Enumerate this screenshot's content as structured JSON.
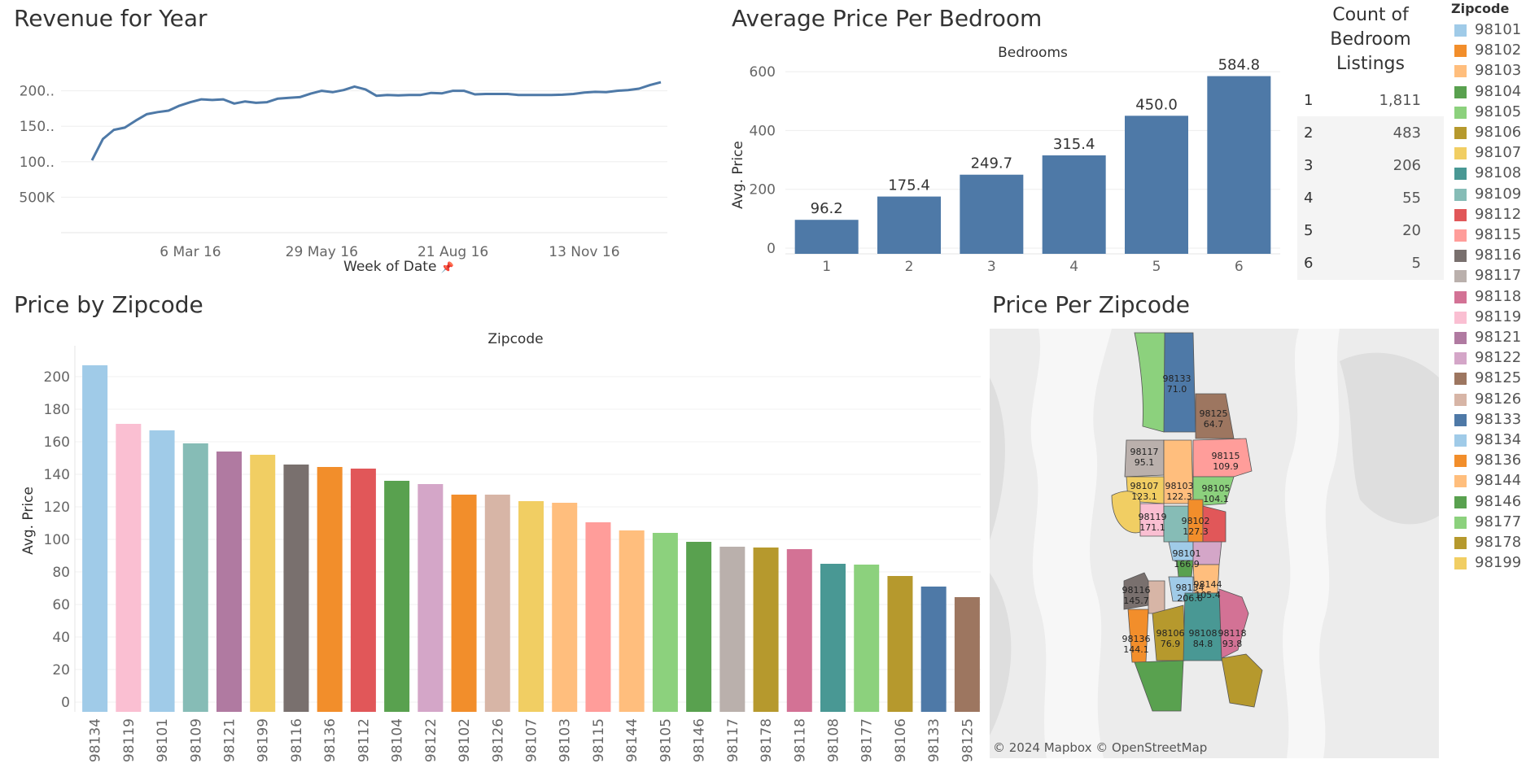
{
  "titles": {
    "revenue": "Revenue for Year",
    "avg_bedroom": "Average Price Per Bedroom",
    "count_bedroom": [
      "Count of",
      "Bedroom",
      "Listings"
    ],
    "price_zip": "Price by Zipcode",
    "price_per_zip": "Price Per Zipcode",
    "legend": "Zipcode"
  },
  "revenue_chart": {
    "type": "line",
    "xlabel": "Week of Date",
    "x_ticks": [
      "6 Mar 16",
      "29 May 16",
      "21 Aug 16",
      "13 Nov 16"
    ],
    "y_ticks": [
      "500K",
      "100..",
      "150..",
      "200.."
    ],
    "color": "#4e79a7",
    "x": [
      "2016-01-04",
      "2016-01-11",
      "2016-01-18",
      "2016-01-25",
      "2016-02-01",
      "2016-02-08",
      "2016-02-15",
      "2016-02-22",
      "2016-02-29",
      "2016-03-07",
      "2016-03-14",
      "2016-03-21",
      "2016-03-28",
      "2016-04-04",
      "2016-04-11",
      "2016-04-18",
      "2016-04-25",
      "2016-05-02",
      "2016-05-09",
      "2016-05-16",
      "2016-05-23",
      "2016-05-30",
      "2016-06-06",
      "2016-06-13",
      "2016-06-20",
      "2016-06-27",
      "2016-07-04",
      "2016-07-11",
      "2016-07-18",
      "2016-07-25",
      "2016-08-01",
      "2016-08-08",
      "2016-08-15",
      "2016-08-22",
      "2016-08-29",
      "2016-09-05",
      "2016-09-12",
      "2016-09-19",
      "2016-09-26",
      "2016-10-03",
      "2016-10-10",
      "2016-10-17",
      "2016-10-24",
      "2016-10-31",
      "2016-11-07",
      "2016-11-14",
      "2016-11-21",
      "2016-11-28",
      "2016-12-05",
      "2016-12-12",
      "2016-12-19",
      "2016-12-26",
      "2017-01-02"
    ],
    "values": [
      1020000,
      1320000,
      1450000,
      1480000,
      1580000,
      1670000,
      1700000,
      1720000,
      1790000,
      1840000,
      1880000,
      1870000,
      1880000,
      1820000,
      1850000,
      1830000,
      1840000,
      1890000,
      1900000,
      1910000,
      1960000,
      2000000,
      1980000,
      2010000,
      2060000,
      2020000,
      1930000,
      1940000,
      1935000,
      1940000,
      1940000,
      1970000,
      1965000,
      2000000,
      2000000,
      1950000,
      1955000,
      1955000,
      1955000,
      1940000,
      1940000,
      1940000,
      1940000,
      1945000,
      1955000,
      1975000,
      1985000,
      1980000,
      2000000,
      2010000,
      2030000,
      2080000,
      2120000
    ],
    "ylim": [
      0,
      2500000
    ]
  },
  "bedroom_chart": {
    "type": "bar",
    "header": "Bedrooms",
    "ylabel": "Avg. Price",
    "categories": [
      "1",
      "2",
      "3",
      "4",
      "5",
      "6"
    ],
    "values": [
      96.2,
      175.4,
      249.7,
      315.4,
      450.0,
      584.8
    ],
    "labels": [
      "96.2",
      "175.4",
      "249.7",
      "315.4",
      "450.0",
      "584.8"
    ],
    "y_ticks": [
      "0",
      "200",
      "400",
      "600"
    ],
    "ylim": [
      0,
      650
    ],
    "color": "#4e79a7"
  },
  "bedroom_counts": [
    {
      "k": "1",
      "v": "1,811"
    },
    {
      "k": "2",
      "v": "483"
    },
    {
      "k": "3",
      "v": "206"
    },
    {
      "k": "4",
      "v": "55"
    },
    {
      "k": "5",
      "v": "20"
    },
    {
      "k": "6",
      "v": "5"
    }
  ],
  "legend_items": [
    {
      "zip": "98101",
      "color": "#a0cbe8"
    },
    {
      "zip": "98102",
      "color": "#f28e2b"
    },
    {
      "zip": "98103",
      "color": "#ffbe7d"
    },
    {
      "zip": "98104",
      "color": "#59a14f"
    },
    {
      "zip": "98105",
      "color": "#8cd17d"
    },
    {
      "zip": "98106",
      "color": "#b6992d"
    },
    {
      "zip": "98107",
      "color": "#f1ce63"
    },
    {
      "zip": "98108",
      "color": "#499894"
    },
    {
      "zip": "98109",
      "color": "#86bcb6"
    },
    {
      "zip": "98112",
      "color": "#e15759"
    },
    {
      "zip": "98115",
      "color": "#ff9d9a"
    },
    {
      "zip": "98116",
      "color": "#79706e"
    },
    {
      "zip": "98117",
      "color": "#bab0ac"
    },
    {
      "zip": "98118",
      "color": "#d37295"
    },
    {
      "zip": "98119",
      "color": "#fabfd2"
    },
    {
      "zip": "98121",
      "color": "#b07aa1"
    },
    {
      "zip": "98122",
      "color": "#d4a6c8"
    },
    {
      "zip": "98125",
      "color": "#9d7660"
    },
    {
      "zip": "98126",
      "color": "#d7b5a6"
    },
    {
      "zip": "98133",
      "color": "#4e79a7"
    },
    {
      "zip": "98134",
      "color": "#a0cbe8"
    },
    {
      "zip": "98136",
      "color": "#f28e2b"
    },
    {
      "zip": "98144",
      "color": "#ffbe7d"
    },
    {
      "zip": "98146",
      "color": "#59a14f"
    },
    {
      "zip": "98177",
      "color": "#8cd17d"
    },
    {
      "zip": "98178",
      "color": "#b6992d"
    },
    {
      "zip": "98199",
      "color": "#f1ce63"
    }
  ],
  "zip_chart": {
    "type": "bar",
    "header": "Zipcode",
    "ylabel": "Avg. Price",
    "categories": [
      "98134",
      "98119",
      "98101",
      "98109",
      "98121",
      "98199",
      "98116",
      "98136",
      "98112",
      "98104",
      "98122",
      "98102",
      "98126",
      "98107",
      "98103",
      "98115",
      "98144",
      "98105",
      "98146",
      "98117",
      "98178",
      "98118",
      "98108",
      "98177",
      "98106",
      "98133",
      "98125"
    ],
    "values": [
      207,
      171,
      167,
      159,
      154,
      152,
      146,
      144.5,
      143.5,
      136,
      134,
      127.5,
      127.5,
      123.5,
      122.5,
      110.5,
      105.5,
      104,
      98.5,
      95.5,
      95,
      94,
      85,
      84.5,
      77.5,
      71,
      64.5
    ],
    "colors": [
      "#a0cbe8",
      "#fabfd2",
      "#a0cbe8",
      "#86bcb6",
      "#b07aa1",
      "#f1ce63",
      "#79706e",
      "#f28e2b",
      "#e15759",
      "#59a14f",
      "#d4a6c8",
      "#f28e2b",
      "#d7b5a6",
      "#f1ce63",
      "#ffbe7d",
      "#ff9d9a",
      "#ffbe7d",
      "#8cd17d",
      "#59a14f",
      "#bab0ac",
      "#b6992d",
      "#d37295",
      "#499894",
      "#8cd17d",
      "#b6992d",
      "#4e79a7",
      "#9d7660"
    ],
    "y_ticks": [
      "0",
      "20",
      "40",
      "60",
      "80",
      "100",
      "120",
      "140",
      "160",
      "180",
      "200"
    ],
    "ylim": [
      0,
      220
    ]
  },
  "map": {
    "attribution": "© 2024 Mapbox © OpenStreetMap",
    "labels": [
      {
        "zip": "98133",
        "val": "71.0"
      },
      {
        "zip": "98125",
        "val": "64.7"
      },
      {
        "zip": "98117",
        "val": "95.1"
      },
      {
        "zip": "98115",
        "val": "109.9"
      },
      {
        "zip": "98107",
        "val": "123.1"
      },
      {
        "zip": "98103",
        "val": "122.3"
      },
      {
        "zip": "98105",
        "val": "104.1"
      },
      {
        "zip": "98119",
        "val": "171.1"
      },
      {
        "zip": "98102",
        "val": "127.3"
      },
      {
        "zip": "98101",
        "val": "166.9"
      },
      {
        "zip": "98116",
        "val": "145.7"
      },
      {
        "zip": "98134",
        "val": "206.6"
      },
      {
        "zip": "98144",
        "val": "105.4"
      },
      {
        "zip": "98136",
        "val": "144.1"
      },
      {
        "zip": "98106",
        "val": "76.9"
      },
      {
        "zip": "98108",
        "val": "84.8"
      },
      {
        "zip": "98118",
        "val": "93.8"
      }
    ]
  }
}
